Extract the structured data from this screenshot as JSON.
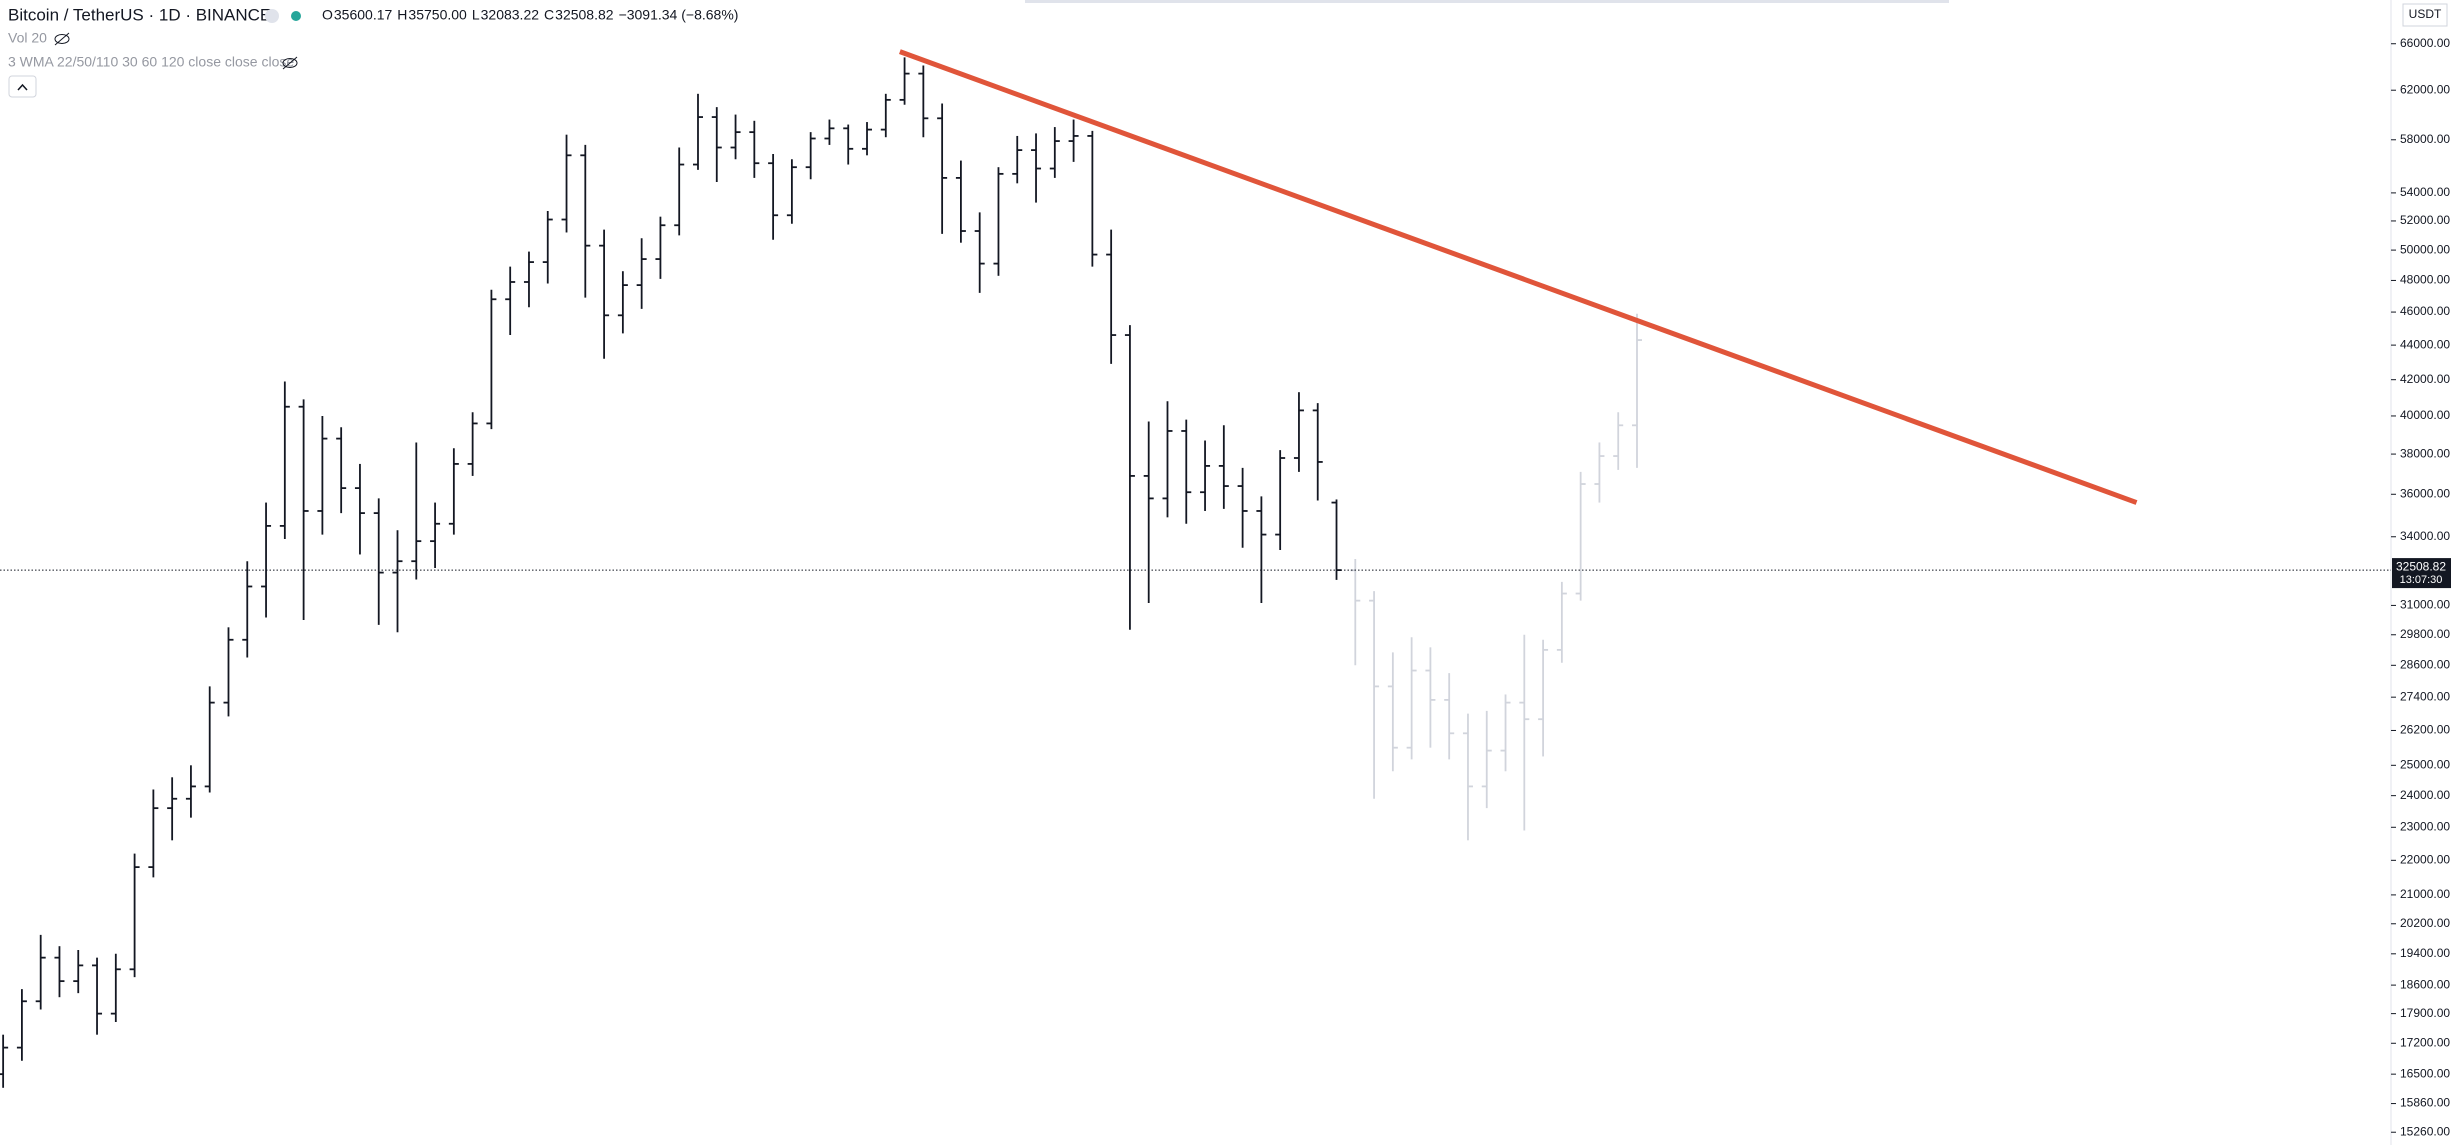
{
  "chart_data": {
    "type": "ohlc",
    "title": "Bitcoin / TetherUS · 1D · BINANCE",
    "ohlc_legend": [
      {
        "label": "O",
        "value": "35600.17"
      },
      {
        "label": "H",
        "value": "35750.00"
      },
      {
        "label": "L",
        "value": "32083.22"
      },
      {
        "label": "C",
        "value": "32508.82"
      }
    ],
    "change": "−3091.34 (−8.68%)",
    "indicators": [
      "Vol 20",
      "3 WMA 22/50/110 30 60 120 close close close"
    ],
    "currency": "USDT",
    "log_scale": true,
    "ylim": [
      15000,
      70000
    ],
    "yticks": [
      {
        "value": 66000,
        "label": "66000.00"
      },
      {
        "value": 62000,
        "label": "62000.00"
      },
      {
        "value": 58000,
        "label": "58000.00"
      },
      {
        "value": 54000,
        "label": "54000.00"
      },
      {
        "value": 52000,
        "label": "52000.00"
      },
      {
        "value": 50000,
        "label": "50000.00"
      },
      {
        "value": 48000,
        "label": "48000.00"
      },
      {
        "value": 46000,
        "label": "46000.00"
      },
      {
        "value": 44000,
        "label": "44000.00"
      },
      {
        "value": 42000,
        "label": "42000.00"
      },
      {
        "value": 40000,
        "label": "40000.00"
      },
      {
        "value": 38000,
        "label": "38000.00"
      },
      {
        "value": 36000,
        "label": "36000.00"
      },
      {
        "value": 34000,
        "label": "34000.00"
      },
      {
        "value": 31000,
        "label": "31000.00"
      },
      {
        "value": 29800,
        "label": "29800.00"
      },
      {
        "value": 28600,
        "label": "28600.00"
      },
      {
        "value": 27400,
        "label": "27400.00"
      },
      {
        "value": 26200,
        "label": "26200.00"
      },
      {
        "value": 25000,
        "label": "25000.00"
      },
      {
        "value": 24000,
        "label": "24000.00"
      },
      {
        "value": 23000,
        "label": "23000.00"
      },
      {
        "value": 22000,
        "label": "22000.00"
      },
      {
        "value": 21000,
        "label": "21000.00"
      },
      {
        "value": 20200,
        "label": "20200.00"
      },
      {
        "value": 19400,
        "label": "19400.00"
      },
      {
        "value": 18600,
        "label": "18600.00"
      },
      {
        "value": 17900,
        "label": "17900.00"
      },
      {
        "value": 17200,
        "label": "17200.00"
      },
      {
        "value": 16500,
        "label": "16500.00"
      },
      {
        "value": 15860,
        "label": "15860.00"
      },
      {
        "value": 15260,
        "label": "15260.00"
      }
    ],
    "last_price": {
      "value": 32508.82,
      "label": "32508.82",
      "countdown": "13:07:30"
    },
    "series": [
      {
        "color": "#131722",
        "bars": [
          [
            16500,
            17400,
            16200,
            17100
          ],
          [
            17100,
            18500,
            16800,
            18200
          ],
          [
            18200,
            19900,
            18000,
            19300
          ],
          [
            19300,
            19600,
            18300,
            18700
          ],
          [
            18700,
            19500,
            18400,
            19100
          ],
          [
            19100,
            19300,
            17400,
            17900
          ],
          [
            17900,
            19400,
            17700,
            19000
          ],
          [
            19000,
            22200,
            18800,
            21800
          ],
          [
            21800,
            24200,
            21500,
            23600
          ],
          [
            23600,
            24600,
            22600,
            23900
          ],
          [
            23900,
            25000,
            23300,
            24300
          ],
          [
            24300,
            27800,
            24100,
            27200
          ],
          [
            27200,
            30100,
            26700,
            29600
          ],
          [
            29600,
            32900,
            28900,
            31800
          ],
          [
            31800,
            35600,
            30500,
            34500
          ],
          [
            34500,
            41900,
            33900,
            40500
          ],
          [
            40500,
            40900,
            30400,
            35200
          ],
          [
            35200,
            40000,
            34100,
            38800
          ],
          [
            38800,
            39400,
            35100,
            36300
          ],
          [
            36300,
            37500,
            33200,
            35100
          ],
          [
            35100,
            35800,
            30200,
            32400
          ],
          [
            32400,
            34300,
            29900,
            32900
          ],
          [
            32900,
            38600,
            32100,
            33800
          ],
          [
            33800,
            35600,
            32600,
            34600
          ],
          [
            34600,
            38300,
            34100,
            37500
          ],
          [
            37500,
            40200,
            36900,
            39600
          ],
          [
            39600,
            47400,
            39300,
            46800
          ],
          [
            46800,
            48900,
            44600,
            47900
          ],
          [
            47900,
            49900,
            46300,
            49200
          ],
          [
            49200,
            52700,
            47800,
            52100
          ],
          [
            52100,
            58400,
            51200,
            56800
          ],
          [
            56800,
            57600,
            46900,
            50300
          ],
          [
            50300,
            51400,
            43200,
            45800
          ],
          [
            45800,
            48600,
            44700,
            47700
          ],
          [
            47700,
            50800,
            46200,
            49400
          ],
          [
            49400,
            52300,
            48100,
            51700
          ],
          [
            51700,
            57400,
            51000,
            56100
          ],
          [
            56100,
            61700,
            55700,
            59800
          ],
          [
            59800,
            60600,
            54800,
            57400
          ],
          [
            57400,
            60000,
            56500,
            58600
          ],
          [
            58600,
            59500,
            55100,
            56200
          ],
          [
            56200,
            56900,
            50700,
            52400
          ],
          [
            52400,
            56500,
            51800,
            55900
          ],
          [
            55900,
            58600,
            55000,
            58100
          ],
          [
            58100,
            59600,
            57600,
            58900
          ],
          [
            58900,
            59200,
            56100,
            57300
          ],
          [
            57300,
            59400,
            56800,
            58800
          ],
          [
            58800,
            61700,
            58200,
            61200
          ],
          [
            61200,
            64800,
            60800,
            63400
          ],
          [
            63400,
            64100,
            58200,
            59700
          ],
          [
            59700,
            60900,
            51100,
            55100
          ],
          [
            55100,
            56400,
            50500,
            51300
          ],
          [
            51300,
            52600,
            47200,
            49100
          ],
          [
            49100,
            55900,
            48300,
            55400
          ],
          [
            55400,
            58300,
            54700,
            57200
          ],
          [
            57200,
            58500,
            53300,
            55800
          ],
          [
            55800,
            59000,
            55100,
            57900
          ],
          [
            57900,
            59600,
            56300,
            58300
          ],
          [
            58300,
            58700,
            48900,
            49700
          ],
          [
            49700,
            51400,
            42900,
            44600
          ],
          [
            44600,
            45200,
            30000,
            36900
          ],
          [
            36900,
            39700,
            31100,
            35800
          ],
          [
            35800,
            40800,
            34900,
            39200
          ],
          [
            39200,
            39800,
            34600,
            36100
          ],
          [
            36100,
            38700,
            35200,
            37400
          ],
          [
            37400,
            39500,
            35300,
            36400
          ],
          [
            36400,
            37300,
            33500,
            35200
          ],
          [
            35200,
            35900,
            31100,
            34100
          ],
          [
            34100,
            38200,
            33400,
            37800
          ],
          [
            37800,
            41300,
            37100,
            40300
          ],
          [
            40300,
            40700,
            35700,
            37600
          ],
          [
            35600.17,
            35750.0,
            32083.22,
            32508.82
          ]
        ]
      },
      {
        "color": "#d1d4dc",
        "bars": [
          [
            32500,
            33000,
            28600,
            31200
          ],
          [
            31200,
            31600,
            23900,
            27800
          ],
          [
            27800,
            29100,
            24800,
            25600
          ],
          [
            25600,
            29700,
            25200,
            28400
          ],
          [
            28400,
            29300,
            25600,
            27300
          ],
          [
            27300,
            28300,
            25200,
            26100
          ],
          [
            26100,
            26800,
            22600,
            24300
          ],
          [
            24300,
            26900,
            23600,
            25500
          ],
          [
            25500,
            27500,
            24800,
            27200
          ],
          [
            27200,
            29800,
            22900,
            26600
          ],
          [
            26600,
            29600,
            25300,
            29200
          ],
          [
            29200,
            32000,
            28700,
            31500
          ],
          [
            31500,
            37100,
            31200,
            36500
          ],
          [
            36500,
            38600,
            35600,
            37900
          ],
          [
            37900,
            40200,
            37200,
            39500
          ],
          [
            39500,
            45900,
            37300,
            44300
          ]
        ]
      }
    ],
    "trendline": {
      "color": "#e0553a",
      "points": [
        [
          47.75,
          65300
        ],
        [
          113.6,
          35600
        ]
      ]
    }
  }
}
